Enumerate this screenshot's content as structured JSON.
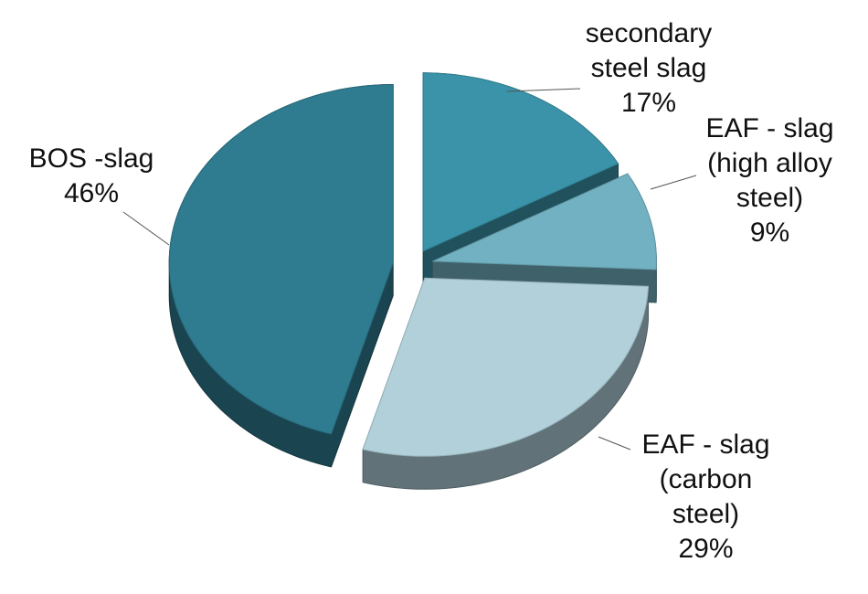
{
  "chart_data": {
    "type": "pie",
    "categories": [
      "secondary steel slag",
      "EAF - slag (high alloy steel)",
      "EAF - slag (carbon steel)",
      "BOS -slag"
    ],
    "values": [
      17,
      9,
      29,
      46
    ],
    "value_labels": [
      "17%",
      "9%",
      "29%",
      "46%"
    ],
    "colors": [
      "#3a93a8",
      "#72b1c1",
      "#b1d0da",
      "#2f7b8f"
    ],
    "exploded": true,
    "three_d": true
  }
}
